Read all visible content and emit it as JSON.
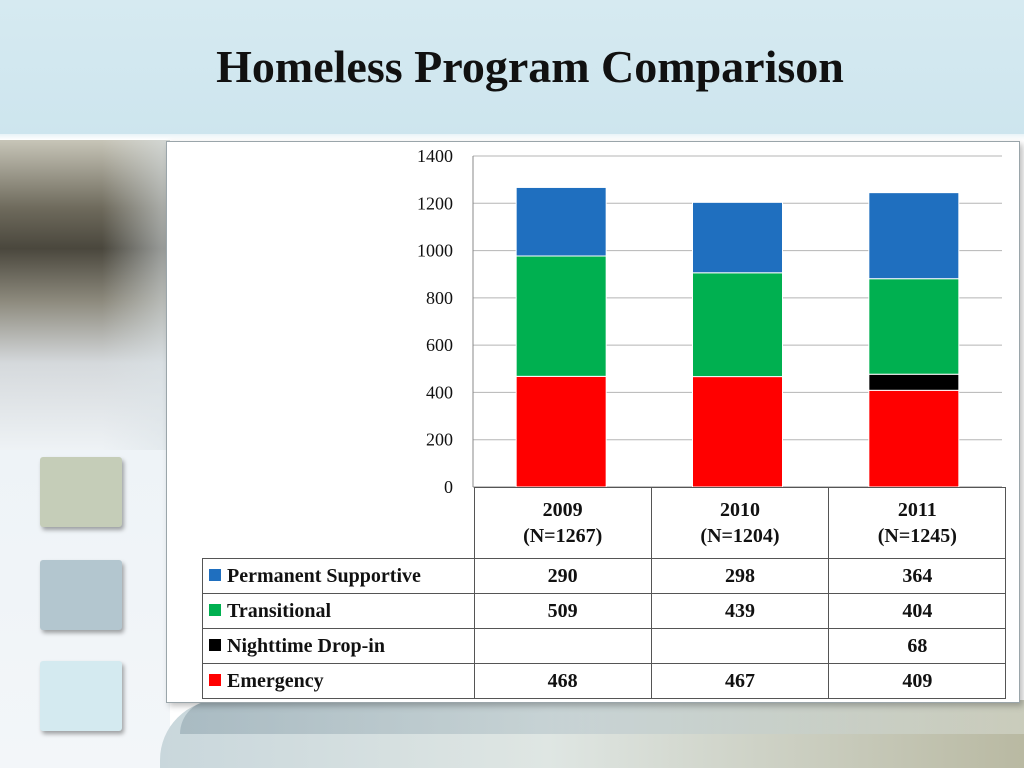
{
  "slide": {
    "title": "Homeless Program Comparison"
  },
  "colors": {
    "permanent_supportive": "#1f6fbf",
    "transitional": "#00b050",
    "nighttime_drop_in": "#000000",
    "emergency": "#ff0000",
    "tile_1": "#c5cdb8",
    "tile_2": "#b3c6cf",
    "tile_3": "#d4eaf0"
  },
  "chart_data": {
    "type": "bar",
    "stacked": true,
    "title": "",
    "xlabel": "",
    "ylabel": "",
    "ylim": [
      0,
      1400
    ],
    "yticks": [
      "0",
      "200",
      "400",
      "600",
      "800",
      "1000",
      "1200",
      "1400"
    ],
    "grid": true,
    "categories": [
      {
        "year": "2009",
        "n": "(N=1267)"
      },
      {
        "year": "2010",
        "n": "(N=1204)"
      },
      {
        "year": "2011",
        "n": "(N=1245)"
      }
    ],
    "series": [
      {
        "name": "Emergency",
        "color": "#ff0000",
        "values": [
          468,
          467,
          409
        ],
        "labels": [
          "468",
          "467",
          "409"
        ]
      },
      {
        "name": "Nighttime Drop-in",
        "color": "#000000",
        "values": [
          0,
          0,
          68
        ],
        "labels": [
          "",
          "",
          "68"
        ]
      },
      {
        "name": "Transitional",
        "color": "#00b050",
        "values": [
          509,
          439,
          404
        ],
        "labels": [
          "509",
          "439",
          "404"
        ]
      },
      {
        "name": "Permanent Supportive",
        "color": "#1f6fbf",
        "values": [
          290,
          298,
          364
        ],
        "labels": [
          "290",
          "298",
          "364"
        ]
      }
    ],
    "table_row_order": [
      "Permanent Supportive",
      "Transitional",
      "Nighttime Drop-in",
      "Emergency"
    ]
  }
}
